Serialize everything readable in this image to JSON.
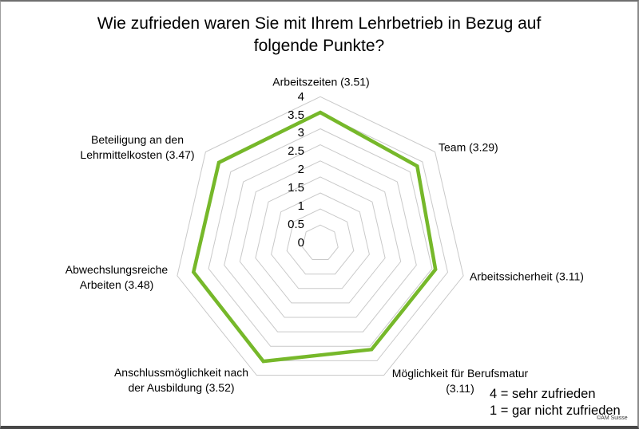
{
  "title_lines": [
    "Wie zufrieden waren Sie mit Ihrem Lehrbetrieb in Bezug auf",
    "folgende Punkte?"
  ],
  "copyright": "©AM Suisse",
  "chart_data": {
    "type": "radar",
    "title": "Wie zufrieden waren Sie mit Ihrem Lehrbetrieb in Bezug auf folgende Punkte?",
    "categories": [
      "Arbeitszeiten",
      "Team",
      "Arbeitssicherheit",
      "Möglichkeit für Berufsmatur",
      "Anschlussmöglichkeit nach der Ausbildung",
      "Abwechslungsreiche Arbeiten",
      "Beteiligung an den Lehrmittelkosten"
    ],
    "values": [
      3.51,
      3.29,
      3.11,
      3.11,
      3.52,
      3.48,
      3.47
    ],
    "axis_label_lines": [
      [
        "Arbeitszeiten (3.51)"
      ],
      [
        "Team (3.29)"
      ],
      [
        "Arbeitssicherheit (3.11)"
      ],
      [
        "Möglichkeit für Berufsmatur",
        "(3.11)"
      ],
      [
        "Anschlussmöglichkeit nach",
        "der Ausbildung (3.52)"
      ],
      [
        "Abwechslungsreiche",
        "Arbeiten (3.48)"
      ],
      [
        "Beteiligung an den",
        "Lehrmittelkosten (3.47)"
      ]
    ],
    "scale": {
      "min": 0,
      "max": 4,
      "step": 0.5,
      "tick_labels": [
        "4",
        "3.5",
        "3",
        "2.5",
        "2",
        "1.5",
        "1",
        "0.5",
        "0"
      ]
    },
    "axis_range": [
      0,
      4
    ],
    "grid": true,
    "legend": [
      "4 = sehr zufrieden",
      "1 = gar nicht zufrieden"
    ],
    "legend_position": "bottom-right",
    "colors": {
      "series": "#76b82a",
      "grid": "#c9c9c9",
      "text": "#000000"
    }
  }
}
